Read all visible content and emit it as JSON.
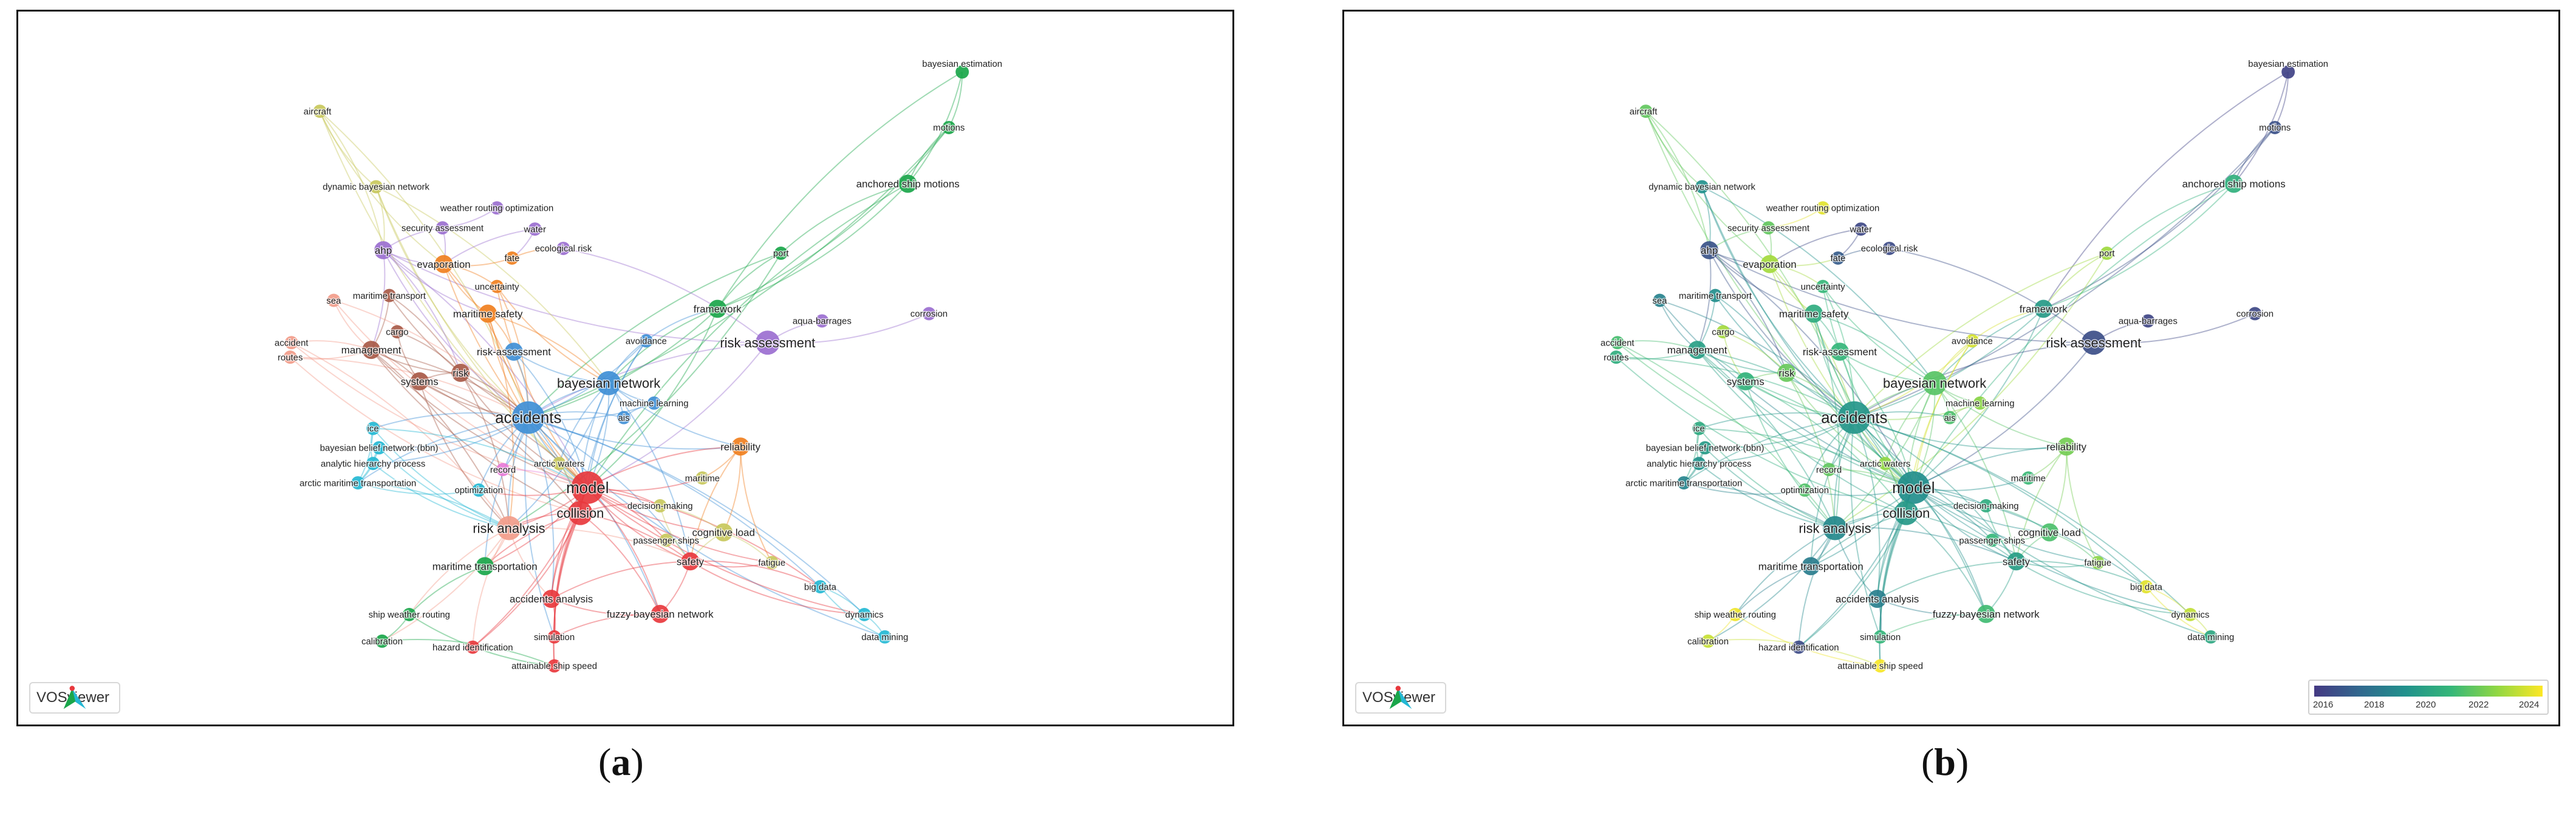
{
  "panels": {
    "a": {
      "caption_letter": "a",
      "badge_text": "VOSviewer"
    },
    "b": {
      "caption_letter": "b",
      "badge_text": "VOSviewer",
      "legend_ticks": [
        "2016",
        "2018",
        "2020",
        "2022",
        "2024"
      ]
    }
  },
  "palette": {
    "clusters": [
      "#e8383d",
      "#24b8d4",
      "#1aa64a",
      "#c8c85c",
      "#9b6fd0",
      "#f07f1e",
      "#a85a48",
      "#e87bd8",
      "#3f8fd6",
      "#f29c8a",
      "#b6b6b6"
    ],
    "years": [
      "#443983",
      "#31688e",
      "#21918c",
      "#35b779",
      "#90d743",
      "#fde725"
    ]
  },
  "nodes": [
    {
      "label": "bayesian estimation",
      "cluster": 2,
      "year": 2016.3,
      "weight": 1
    },
    {
      "label": "motions",
      "cluster": 2,
      "year": 2016.8,
      "weight": 1
    },
    {
      "label": "anchored ship motions",
      "cluster": 2,
      "year": 2020.5,
      "weight": 2
    },
    {
      "label": "port",
      "cluster": 2,
      "year": 2022.6,
      "weight": 1
    },
    {
      "label": "framework",
      "cluster": 2,
      "year": 2019.6,
      "weight": 2
    },
    {
      "label": "aqua-barrages",
      "cluster": 4,
      "year": 2016.4,
      "weight": 1
    },
    {
      "label": "corrosion",
      "cluster": 4,
      "year": 2016.5,
      "weight": 1
    },
    {
      "label": "risk assessment",
      "cluster": 4,
      "year": 2016.7,
      "weight": 3
    },
    {
      "label": "aircraft",
      "cluster": 3,
      "year": 2021.6,
      "weight": 1
    },
    {
      "label": "dynamic bayesian network",
      "cluster": 3,
      "year": 2019.2,
      "weight": 1
    },
    {
      "label": "weather routing optimization",
      "cluster": 4,
      "year": 2023.6,
      "weight": 1
    },
    {
      "label": "security assessment",
      "cluster": 4,
      "year": 2021.6,
      "weight": 1
    },
    {
      "label": "water",
      "cluster": 4,
      "year": 2016.5,
      "weight": 1
    },
    {
      "label": "ahp",
      "cluster": 4,
      "year": 2016.9,
      "weight": 2
    },
    {
      "label": "evaporation",
      "cluster": 5,
      "year": 2022.7,
      "weight": 2
    },
    {
      "label": "fate",
      "cluster": 5,
      "year": 2017.2,
      "weight": 1
    },
    {
      "label": "ecological risk",
      "cluster": 4,
      "year": 2016.6,
      "weight": 1
    },
    {
      "label": "uncertainty",
      "cluster": 5,
      "year": 2020.8,
      "weight": 1
    },
    {
      "label": "maritime transport",
      "cluster": 6,
      "year": 2019.1,
      "weight": 1
    },
    {
      "label": "sea",
      "cluster": 9,
      "year": 2018.6,
      "weight": 1
    },
    {
      "label": "maritime safety",
      "cluster": 5,
      "year": 2020.3,
      "weight": 2
    },
    {
      "label": "accident",
      "cluster": 9,
      "year": 2021.1,
      "weight": 1
    },
    {
      "label": "routes",
      "cluster": 9,
      "year": 2020.4,
      "weight": 1
    },
    {
      "label": "cargo",
      "cluster": 6,
      "year": 2022.7,
      "weight": 1
    },
    {
      "label": "management",
      "cluster": 6,
      "year": 2019.8,
      "weight": 2
    },
    {
      "label": "avoidance",
      "cluster": 8,
      "year": 2023.4,
      "weight": 1
    },
    {
      "label": "risk-assessment",
      "cluster": 8,
      "year": 2020.7,
      "weight": 2
    },
    {
      "label": "risk",
      "cluster": 6,
      "year": 2021.7,
      "weight": 2
    },
    {
      "label": "systems",
      "cluster": 6,
      "year": 2020.6,
      "weight": 2
    },
    {
      "label": "bayesian network",
      "cluster": 8,
      "year": 2021.4,
      "weight": 3
    },
    {
      "label": "machine learning",
      "cluster": 8,
      "year": 2022.3,
      "weight": 1
    },
    {
      "label": "accidents",
      "cluster": 8,
      "year": 2019.4,
      "weight": 4
    },
    {
      "label": "ais",
      "cluster": 8,
      "year": 2021.2,
      "weight": 1
    },
    {
      "label": "ice",
      "cluster": 1,
      "year": 2020.2,
      "weight": 1
    },
    {
      "label": "reliability",
      "cluster": 5,
      "year": 2021.9,
      "weight": 2
    },
    {
      "label": "bayesian belief network (bbn)",
      "cluster": 1,
      "year": 2019.6,
      "weight": 1
    },
    {
      "label": "analytic hierarchy process",
      "cluster": 1,
      "year": 2019.3,
      "weight": 1
    },
    {
      "label": "record",
      "cluster": 7,
      "year": 2021.6,
      "weight": 1
    },
    {
      "label": "arctic waters",
      "cluster": 3,
      "year": 2022.4,
      "weight": 1
    },
    {
      "label": "arctic maritime transportation",
      "cluster": 1,
      "year": 2018.7,
      "weight": 1
    },
    {
      "label": "model",
      "cluster": 0,
      "year": 2019.1,
      "weight": 4
    },
    {
      "label": "maritime",
      "cluster": 3,
      "year": 2020.9,
      "weight": 1
    },
    {
      "label": "optimization",
      "cluster": 1,
      "year": 2021.3,
      "weight": 1
    },
    {
      "label": "collision",
      "cluster": 0,
      "year": 2019.5,
      "weight": 3
    },
    {
      "label": "decision-making",
      "cluster": 3,
      "year": 2020.3,
      "weight": 1
    },
    {
      "label": "risk analysis",
      "cluster": 9,
      "year": 2018.9,
      "weight": 3
    },
    {
      "label": "cognitive load",
      "cluster": 3,
      "year": 2021.2,
      "weight": 2
    },
    {
      "label": "passenger ships",
      "cluster": 3,
      "year": 2020.8,
      "weight": 1
    },
    {
      "label": "safety",
      "cluster": 0,
      "year": 2019.7,
      "weight": 2
    },
    {
      "label": "fatigue",
      "cluster": 3,
      "year": 2022.3,
      "weight": 1
    },
    {
      "label": "maritime transportation",
      "cluster": 2,
      "year": 2018.4,
      "weight": 2
    },
    {
      "label": "big data",
      "cluster": 1,
      "year": 2023.6,
      "weight": 1
    },
    {
      "label": "accidents analysis",
      "cluster": 0,
      "year": 2018.5,
      "weight": 2
    },
    {
      "label": "fuzzy bayesian network",
      "cluster": 0,
      "year": 2021.0,
      "weight": 2
    },
    {
      "label": "dynamics",
      "cluster": 1,
      "year": 2023.1,
      "weight": 1
    },
    {
      "label": "ship weather routing",
      "cluster": 2,
      "year": 2023.8,
      "weight": 1
    },
    {
      "label": "simulation",
      "cluster": 0,
      "year": 2020.7,
      "weight": 1
    },
    {
      "label": "data mining",
      "cluster": 1,
      "year": 2020.1,
      "weight": 1
    },
    {
      "label": "calibration",
      "cluster": 2,
      "year": 2023.2,
      "weight": 1
    },
    {
      "label": "hazard identification",
      "cluster": 0,
      "year": 2016.6,
      "weight": 1
    },
    {
      "label": "attainable ship speed",
      "cluster": 0,
      "year": 2023.9,
      "weight": 1
    }
  ],
  "links": [
    [
      "bayesian estimation",
      "motions"
    ],
    [
      "motions",
      "anchored ship motions"
    ],
    [
      "bayesian estimation",
      "anchored ship motions"
    ],
    [
      "anchored ship motions",
      "port"
    ],
    [
      "anchored ship motions",
      "framework"
    ],
    [
      "bayesian estimation",
      "framework"
    ],
    [
      "motions",
      "framework"
    ],
    [
      "port",
      "framework"
    ],
    [
      "framework",
      "accidents"
    ],
    [
      "framework",
      "bayesian network"
    ],
    [
      "framework",
      "model"
    ],
    [
      "port",
      "accidents"
    ],
    [
      "port",
      "risk analysis"
    ],
    [
      "anchored ship motions",
      "model"
    ],
    [
      "motions",
      "accidents"
    ],
    [
      "aqua-barrages",
      "risk assessment"
    ],
    [
      "corrosion",
      "risk assessment"
    ],
    [
      "risk assessment",
      "accidents"
    ],
    [
      "risk assessment",
      "model"
    ],
    [
      "risk assessment",
      "ecological risk"
    ],
    [
      "risk assessment",
      "ahp"
    ],
    [
      "aircraft",
      "dynamic bayesian network"
    ],
    [
      "aircraft",
      "ahp"
    ],
    [
      "aircraft",
      "model"
    ],
    [
      "aircraft",
      "accidents"
    ],
    [
      "aircraft",
      "evaporation"
    ],
    [
      "dynamic bayesian network",
      "ahp"
    ],
    [
      "dynamic bayesian network",
      "accidents"
    ],
    [
      "dynamic bayesian network",
      "bayesian network"
    ],
    [
      "dynamic bayesian network",
      "model"
    ],
    [
      "weather routing optimization",
      "security assessment"
    ],
    [
      "security assessment",
      "ahp"
    ],
    [
      "security assessment",
      "evaporation"
    ],
    [
      "water",
      "evaporation"
    ],
    [
      "water",
      "fate"
    ],
    [
      "ahp",
      "evaporation"
    ],
    [
      "ahp",
      "management"
    ],
    [
      "ahp",
      "accidents"
    ],
    [
      "ahp",
      "risk"
    ],
    [
      "ahp",
      "maritime safety"
    ],
    [
      "ahp",
      "model"
    ],
    [
      "evaporation",
      "fate"
    ],
    [
      "evaporation",
      "uncertainty"
    ],
    [
      "evaporation",
      "maritime safety"
    ],
    [
      "evaporation",
      "accidents"
    ],
    [
      "evaporation",
      "model"
    ],
    [
      "fate",
      "ecological risk"
    ],
    [
      "uncertainty",
      "bayesian network"
    ],
    [
      "uncertainty",
      "accidents"
    ],
    [
      "uncertainty",
      "model"
    ],
    [
      "maritime transport",
      "risk"
    ],
    [
      "maritime transport",
      "accidents"
    ],
    [
      "maritime transport",
      "management"
    ],
    [
      "sea",
      "management"
    ],
    [
      "sea",
      "accidents"
    ],
    [
      "sea",
      "model"
    ],
    [
      "accident",
      "management"
    ],
    [
      "accident",
      "model"
    ],
    [
      "accident",
      "risk analysis"
    ],
    [
      "routes",
      "management"
    ],
    [
      "routes",
      "accidents"
    ],
    [
      "routes",
      "collision"
    ],
    [
      "cargo",
      "risk"
    ],
    [
      "cargo",
      "systems"
    ],
    [
      "management",
      "systems"
    ],
    [
      "management",
      "risk"
    ],
    [
      "management",
      "accidents"
    ],
    [
      "management",
      "model"
    ],
    [
      "management",
      "risk analysis"
    ],
    [
      "management",
      "collision"
    ],
    [
      "maritime safety",
      "risk-assessment"
    ],
    [
      "maritime safety",
      "accidents"
    ],
    [
      "maritime safety",
      "bayesian network"
    ],
    [
      "maritime safety",
      "model"
    ],
    [
      "maritime safety",
      "risk analysis"
    ],
    [
      "avoidance",
      "bayesian network"
    ],
    [
      "avoidance",
      "accidents"
    ],
    [
      "avoidance",
      "collision"
    ],
    [
      "avoidance",
      "framework"
    ],
    [
      "avoidance",
      "model"
    ],
    [
      "risk-assessment",
      "accidents"
    ],
    [
      "risk-assessment",
      "bayesian network"
    ],
    [
      "risk-assessment",
      "model"
    ],
    [
      "risk",
      "systems"
    ],
    [
      "risk",
      "accidents"
    ],
    [
      "risk",
      "model"
    ],
    [
      "risk",
      "risk analysis"
    ],
    [
      "systems",
      "accidents"
    ],
    [
      "systems",
      "model"
    ],
    [
      "systems",
      "risk analysis"
    ],
    [
      "systems",
      "collision"
    ],
    [
      "bayesian network",
      "accidents"
    ],
    [
      "bayesian network",
      "model"
    ],
    [
      "bayesian network",
      "machine learning"
    ],
    [
      "bayesian network",
      "ais"
    ],
    [
      "bayesian network",
      "collision"
    ],
    [
      "bayesian network",
      "risk analysis"
    ],
    [
      "bayesian network",
      "reliability"
    ],
    [
      "bayesian network",
      "safety"
    ],
    [
      "bayesian network",
      "arctic waters"
    ],
    [
      "machine learning",
      "accidents"
    ],
    [
      "machine learning",
      "ais"
    ],
    [
      "accidents",
      "ais"
    ],
    [
      "accidents",
      "model"
    ],
    [
      "accidents",
      "collision"
    ],
    [
      "accidents",
      "risk analysis"
    ],
    [
      "accidents",
      "safety"
    ],
    [
      "accidents",
      "ice"
    ],
    [
      "accidents",
      "analytic hierarchy process"
    ],
    [
      "accidents",
      "arctic maritime transportation"
    ],
    [
      "accidents",
      "bayesian belief network (bbn)"
    ],
    [
      "accidents",
      "optimization"
    ],
    [
      "accidents",
      "record"
    ],
    [
      "accidents",
      "reliability"
    ],
    [
      "accidents",
      "accidents analysis"
    ],
    [
      "accidents",
      "maritime transportation"
    ],
    [
      "accidents",
      "fuzzy bayesian network"
    ],
    [
      "accidents",
      "simulation"
    ],
    [
      "accidents",
      "big data"
    ],
    [
      "accidents",
      "data mining"
    ],
    [
      "accidents",
      "dynamics"
    ],
    [
      "ice",
      "analytic hierarchy process"
    ],
    [
      "ice",
      "arctic maritime transportation"
    ],
    [
      "ice",
      "risk analysis"
    ],
    [
      "ice",
      "model"
    ],
    [
      "bayesian belief network (bbn)",
      "analytic hierarchy process"
    ],
    [
      "bayesian belief network (bbn)",
      "arctic maritime transportation"
    ],
    [
      "bayesian belief network (bbn)",
      "risk analysis"
    ],
    [
      "analytic hierarchy process",
      "arctic maritime transportation"
    ],
    [
      "analytic hierarchy process",
      "risk analysis"
    ],
    [
      "arctic maritime transportation",
      "risk analysis"
    ],
    [
      "arctic maritime transportation",
      "optimization"
    ],
    [
      "record",
      "model"
    ],
    [
      "arctic waters",
      "model"
    ],
    [
      "arctic waters",
      "collision"
    ],
    [
      "model",
      "collision"
    ],
    [
      "model",
      "risk analysis"
    ],
    [
      "model",
      "safety"
    ],
    [
      "model",
      "reliability"
    ],
    [
      "model",
      "maritime"
    ],
    [
      "model",
      "decision-making"
    ],
    [
      "model",
      "accidents analysis"
    ],
    [
      "model",
      "fuzzy bayesian network"
    ],
    [
      "model",
      "simulation"
    ],
    [
      "model",
      "hazard identification"
    ],
    [
      "model",
      "attainable ship speed"
    ],
    [
      "model",
      "maritime transportation"
    ],
    [
      "model",
      "cognitive load"
    ],
    [
      "model",
      "passenger ships"
    ],
    [
      "model",
      "fatigue"
    ],
    [
      "model",
      "big data"
    ],
    [
      "model",
      "dynamics"
    ],
    [
      "model",
      "optimization"
    ],
    [
      "collision",
      "risk analysis"
    ],
    [
      "collision",
      "safety"
    ],
    [
      "collision",
      "accidents analysis"
    ],
    [
      "collision",
      "fuzzy bayesian network"
    ],
    [
      "collision",
      "simulation"
    ],
    [
      "collision",
      "decision-making"
    ],
    [
      "collision",
      "maritime transportation"
    ],
    [
      "collision",
      "hazard identification"
    ],
    [
      "collision",
      "attainable ship speed"
    ],
    [
      "reliability",
      "maritime"
    ],
    [
      "reliability",
      "safety"
    ],
    [
      "reliability",
      "cognitive load"
    ],
    [
      "reliability",
      "fatigue"
    ],
    [
      "decision-making",
      "cognitive load"
    ],
    [
      "decision-making",
      "safety"
    ],
    [
      "cognitive load",
      "passenger ships"
    ],
    [
      "cognitive load",
      "safety"
    ],
    [
      "cognitive load",
      "fatigue"
    ],
    [
      "safety",
      "fatigue"
    ],
    [
      "safety",
      "big data"
    ],
    [
      "safety",
      "dynamics"
    ],
    [
      "safety",
      "fuzzy bayesian network"
    ],
    [
      "safety",
      "accidents analysis"
    ],
    [
      "risk analysis",
      "maritime transportation"
    ],
    [
      "risk analysis",
      "accidents analysis"
    ],
    [
      "risk analysis",
      "safety"
    ],
    [
      "risk analysis",
      "ship weather routing"
    ],
    [
      "risk analysis",
      "calibration"
    ],
    [
      "risk analysis",
      "hazard identification"
    ],
    [
      "big data",
      "dynamics"
    ],
    [
      "big data",
      "data mining"
    ],
    [
      "dynamics",
      "data mining"
    ],
    [
      "maritime transportation",
      "ship weather routing"
    ],
    [
      "ship weather routing",
      "calibration"
    ],
    [
      "ship weather routing",
      "attainable ship speed"
    ],
    [
      "calibration",
      "attainable ship speed"
    ],
    [
      "accidents analysis",
      "fuzzy bayesian network"
    ],
    [
      "accidents analysis",
      "simulation"
    ],
    [
      "fuzzy bayesian network",
      "simulation"
    ]
  ]
}
